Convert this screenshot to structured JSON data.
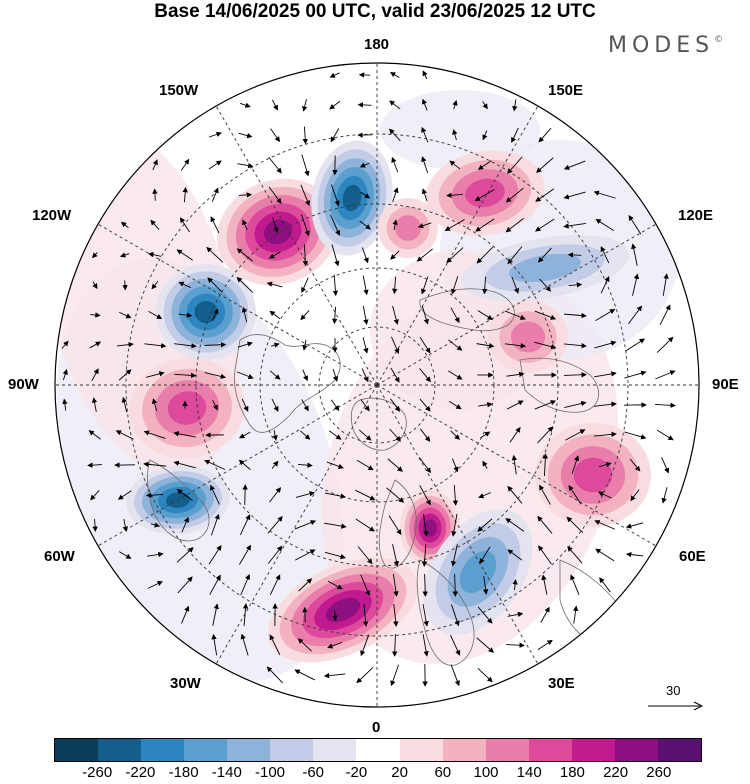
{
  "title": "Base 14/06/2025 00 UTC, valid 23/06/2025 12 UTC",
  "brand": {
    "name": "MODES",
    "mark": "©"
  },
  "longitude_labels": {
    "n180": "180",
    "w150": "150W",
    "e150": "150E",
    "w120": "120W",
    "e120": "120E",
    "w90": "90W",
    "e90": "90E",
    "w60": "60W",
    "e60": "60E",
    "w30": "30W",
    "e30": "30E",
    "s0": "0"
  },
  "reference_vector": {
    "label": "30"
  },
  "colorbar": {
    "colors": [
      "#0c3e5c",
      "#145e8c",
      "#2d86bf",
      "#5b9fce",
      "#8db3da",
      "#c3cce6",
      "#e4e3f0",
      "#ffffff",
      "#f8dcdf",
      "#f2b2bf",
      "#ea7eaa",
      "#dd4a9c",
      "#c11a8f",
      "#8e0f80",
      "#5b1170"
    ],
    "tick_labels": [
      "-260",
      "-220",
      "-180",
      "-140",
      "-100",
      "-60",
      "-20",
      "20",
      "60",
      "100",
      "140",
      "180",
      "220",
      "260"
    ]
  },
  "anomaly_centers": [
    {
      "sign": "positive",
      "level": "strong",
      "region": "North Pacific near 150W"
    },
    {
      "sign": "negative",
      "level": "strong",
      "region": "Alaska–Gulf of Alaska"
    },
    {
      "sign": "negative",
      "level": "strong",
      "region": "Western Canada"
    },
    {
      "sign": "positive",
      "level": "moderate",
      "region": "Central North America"
    },
    {
      "sign": "negative",
      "level": "strong",
      "region": "Northwest Atlantic"
    },
    {
      "sign": "positive",
      "level": "strong",
      "region": "Eastern North Atlantic"
    },
    {
      "sign": "positive",
      "level": "strong",
      "region": "Scandinavia"
    },
    {
      "sign": "negative",
      "level": "moderate",
      "region": "Eastern Europe"
    },
    {
      "sign": "positive",
      "level": "moderate",
      "region": "Central Asia"
    },
    {
      "sign": "positive",
      "level": "weak",
      "region": "Western Siberia"
    },
    {
      "sign": "negative",
      "level": "weak",
      "region": "Central Siberia"
    },
    {
      "sign": "positive",
      "level": "moderate",
      "region": "East Siberia"
    },
    {
      "sign": "positive",
      "level": "weak",
      "region": "Sea of Okhotsk"
    }
  ]
}
